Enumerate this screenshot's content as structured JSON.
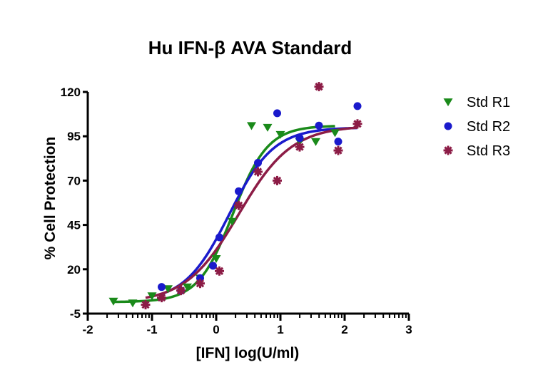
{
  "chart_data": {
    "type": "scatter",
    "title": "Hu IFN-β AVA Standard",
    "xlabel": "[IFN] log(U/ml)",
    "ylabel": "% Cell Protection",
    "xlim": [
      -2,
      3
    ],
    "ylim": [
      -5,
      120
    ],
    "x_ticks": [
      "-2",
      "-1",
      "0",
      "1",
      "2",
      "3"
    ],
    "y_ticks": [
      "-5",
      "20",
      "45",
      "70",
      "95",
      "120"
    ],
    "legend_position": "right",
    "series": [
      {
        "name": "Std R1",
        "marker": "triangle-down",
        "color": "#1a8a1a",
        "x": [
          -1.6,
          -1.3,
          -1.0,
          -0.75,
          -0.45,
          -0.25,
          0.0,
          0.25,
          0.55,
          0.8,
          1.0,
          1.3,
          1.55,
          1.85
        ],
        "y": [
          2,
          1,
          5,
          9,
          10,
          15,
          26,
          47,
          101,
          100,
          96,
          92,
          92,
          97
        ],
        "fit": {
          "bottom": 1.5,
          "top": 101,
          "logEC50": 0.26,
          "hill": 1.6
        }
      },
      {
        "name": "Std R2",
        "marker": "circle",
        "color": "#1a1acc",
        "x": [
          -0.85,
          -0.55,
          -0.25,
          -0.05,
          0.05,
          0.35,
          0.65,
          0.95,
          1.3,
          1.6,
          1.9,
          2.2
        ],
        "y": [
          10,
          8,
          15,
          22,
          38,
          64,
          80,
          108,
          94,
          101,
          92,
          112
        ],
        "fit": {
          "bottom": 1.5,
          "top": 100,
          "logEC50": 0.2,
          "hill": 1.25
        }
      },
      {
        "name": "Std R3",
        "marker": "asterisk",
        "color": "#8c1c46",
        "x": [
          -1.1,
          -0.85,
          -0.55,
          -0.25,
          0.05,
          0.35,
          0.65,
          0.95,
          1.3,
          1.6,
          1.9,
          2.2
        ],
        "y": [
          0,
          4,
          8,
          12,
          19,
          56,
          75,
          70,
          89,
          123,
          87,
          102
        ],
        "fit": {
          "bottom": 1.0,
          "top": 101,
          "logEC50": 0.35,
          "hill": 1.05
        }
      }
    ]
  }
}
